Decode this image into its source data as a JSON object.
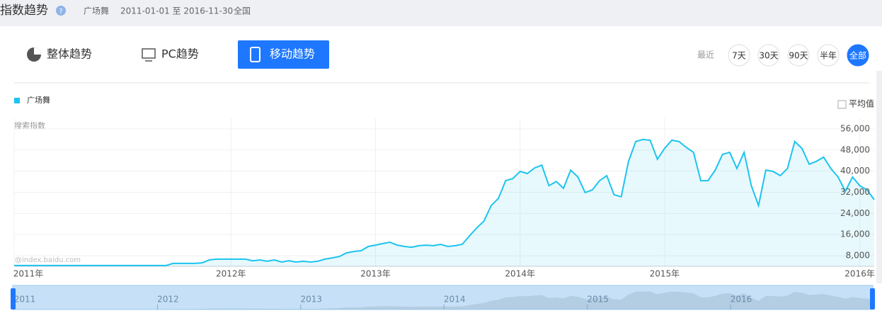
{
  "header": {
    "title": "指数趋势",
    "help": "?",
    "keyword": "广场舞",
    "date_range": "2011-01-01 至 2016-11-30",
    "region": "全国"
  },
  "tabs": [
    "整体趋势",
    "PC趋势",
    "移动趋势"
  ],
  "range_label": "最近",
  "range_buttons": [
    "7天",
    "30天",
    "90天",
    "半年",
    "全部"
  ],
  "average_toggle": "平均值",
  "watermark": "@index.baidu.com",
  "chart_data": {
    "type": "line",
    "y_label": "搜索指数",
    "categories": [
      "2011年",
      null,
      null,
      null,
      null,
      null,
      null,
      null,
      null,
      null,
      null,
      null,
      null,
      null,
      null,
      null,
      null,
      null,
      null,
      null,
      null,
      null,
      null,
      null,
      null,
      null,
      null,
      null,
      null,
      null,
      "2012年",
      null,
      null,
      null,
      null,
      null,
      null,
      null,
      null,
      null,
      null,
      null,
      null,
      null,
      null,
      null,
      null,
      null,
      null,
      null,
      "2013年",
      null,
      null,
      null,
      null,
      null,
      null,
      null,
      null,
      null,
      null,
      null,
      null,
      null,
      null,
      null,
      null,
      null,
      null,
      null,
      "2014年",
      null,
      null,
      null,
      null,
      null,
      null,
      null,
      null,
      null,
      null,
      null,
      null,
      null,
      null,
      null,
      null,
      null,
      null,
      null,
      "2015年",
      null,
      null,
      null,
      null,
      null,
      null,
      null,
      null,
      null,
      null,
      null,
      null,
      null,
      null,
      null,
      null,
      null,
      null,
      null,
      null,
      null,
      null,
      null,
      null,
      null,
      null,
      "2016年",
      null,
      null
    ],
    "series": [
      {
        "name": "广场舞",
        "color": "#1cc4ef",
        "values": [
          4300,
          4300,
          4300,
          4300,
          4300,
          4300,
          4300,
          4300,
          4300,
          4300,
          4300,
          4300,
          4300,
          4300,
          4300,
          4300,
          4300,
          4300,
          4300,
          4300,
          4300,
          4300,
          5100,
          5100,
          5100,
          5100,
          5300,
          6400,
          6700,
          6700,
          6700,
          6700,
          6700,
          6100,
          6400,
          5900,
          6400,
          5600,
          6100,
          5600,
          5900,
          5600,
          5900,
          6700,
          7200,
          7700,
          9100,
          9600,
          9900,
          11500,
          12000,
          12600,
          13100,
          12000,
          11500,
          11200,
          11800,
          12000,
          11800,
          12300,
          11500,
          11800,
          12300,
          15500,
          18500,
          21100,
          27000,
          29700,
          36400,
          37200,
          39900,
          39100,
          41200,
          42300,
          34500,
          36100,
          33500,
          40400,
          37800,
          31900,
          32900,
          36400,
          38300,
          31100,
          30300,
          43700,
          51200,
          52000,
          51700,
          44500,
          48600,
          51700,
          51200,
          49000,
          47100,
          36400,
          36400,
          40400,
          46300,
          47100,
          41000,
          47100,
          34500,
          27000,
          40400,
          39900,
          38300,
          41000,
          51200,
          48600,
          42600,
          43700,
          45300,
          41000,
          37800,
          32400,
          37800,
          34500,
          32900,
          29200
        ]
      }
    ],
    "ylim": [
      4000,
      60000
    ],
    "yticks": [
      {
        "value": 8000,
        "label": "8,000"
      },
      {
        "value": 16000,
        "label": "16,000"
      },
      {
        "value": 24000,
        "label": "24,000"
      },
      {
        "value": 32000,
        "label": "32,000"
      },
      {
        "value": 40000,
        "label": "40,000"
      },
      {
        "value": 48000,
        "label": "48,000"
      },
      {
        "value": 56000,
        "label": "56,000"
      }
    ],
    "grid": true
  },
  "navigator": {
    "labels": [
      "2011",
      "2012",
      "2013",
      "2014",
      "2015",
      "2016"
    ]
  }
}
